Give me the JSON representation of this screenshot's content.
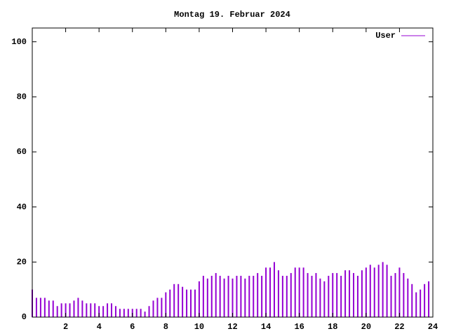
{
  "chart_data": {
    "type": "impulses",
    "title": "Montag 19. Februar 2024",
    "x": [
      0,
      0.25,
      0.5,
      0.75,
      1,
      1.25,
      1.5,
      1.75,
      2,
      2.25,
      2.5,
      2.75,
      3,
      3.25,
      3.5,
      3.75,
      4,
      4.25,
      4.5,
      4.75,
      5,
      5.25,
      5.5,
      5.75,
      6,
      6.25,
      6.5,
      6.75,
      7,
      7.25,
      7.5,
      7.75,
      8,
      8.25,
      8.5,
      8.75,
      9,
      9.25,
      9.5,
      9.75,
      10,
      10.25,
      10.5,
      10.75,
      11,
      11.25,
      11.5,
      11.75,
      12,
      12.25,
      12.5,
      12.75,
      13,
      13.25,
      13.5,
      13.75,
      14,
      14.25,
      14.5,
      14.75,
      15,
      15.25,
      15.5,
      15.75,
      16,
      16.25,
      16.5,
      16.75,
      17,
      17.25,
      17.5,
      17.75,
      18,
      18.25,
      18.5,
      18.75,
      19,
      19.25,
      19.5,
      19.75,
      20,
      20.25,
      20.5,
      20.75,
      21,
      21.25,
      21.5,
      21.75,
      22,
      22.25,
      22.5,
      22.75,
      23,
      23.25,
      23.5,
      23.75
    ],
    "series": [
      {
        "name": "User",
        "color": "#9400d3",
        "values": [
          10,
          7,
          7,
          7,
          6,
          6,
          4,
          5,
          5,
          5,
          6,
          7,
          6,
          5,
          5,
          5,
          4,
          4,
          5,
          5,
          4,
          3,
          3,
          3,
          3,
          3,
          3,
          2,
          4,
          6,
          7,
          7,
          9,
          10,
          12,
          12,
          11,
          10,
          10,
          10,
          13,
          15,
          14,
          15,
          16,
          15,
          14,
          15,
          14,
          15,
          15,
          14,
          15,
          15,
          16,
          15,
          18,
          18,
          20,
          17,
          15,
          15,
          16,
          18,
          18,
          18,
          16,
          15,
          16,
          14,
          13,
          15,
          16,
          16,
          15,
          17,
          17,
          16,
          15,
          17,
          18,
          19,
          18,
          19,
          20,
          19,
          15,
          16,
          18,
          16,
          14,
          12,
          9,
          10,
          12,
          13
        ]
      }
    ],
    "xlim": [
      0,
      24
    ],
    "xticks": [
      2,
      4,
      6,
      8,
      10,
      12,
      14,
      16,
      18,
      20,
      22,
      24
    ],
    "ylim": [
      0,
      105
    ],
    "yticks": [
      0,
      20,
      40,
      60,
      80,
      100
    ]
  }
}
